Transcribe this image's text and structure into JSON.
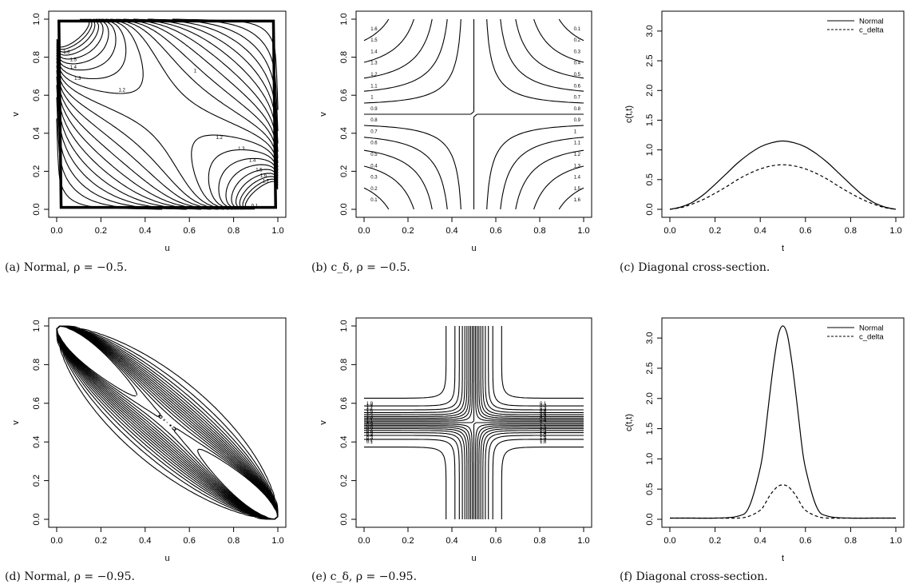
{
  "panels": [
    {
      "caption": "(a) Normal, ρ = −0.5."
    },
    {
      "caption": "(b) c_δ, ρ = −0.5."
    },
    {
      "caption": "(c) Diagonal cross-section."
    },
    {
      "caption": "(d) Normal, ρ = −0.95."
    },
    {
      "caption": "(e) c_δ, ρ = −0.95."
    },
    {
      "caption": "(f) Diagonal cross-section."
    }
  ],
  "colors": {
    "line": "#000000",
    "background": "#ffffff"
  },
  "chart_data": [
    {
      "type": "contour",
      "panel": "a",
      "xlabel": "u",
      "ylabel": "v",
      "xlim": [
        0,
        1
      ],
      "ylim": [
        0,
        1
      ],
      "xticks": [
        "0.0",
        "0.2",
        "0.4",
        "0.6",
        "0.8",
        "1.0"
      ],
      "yticks": [
        "0.0",
        "0.2",
        "0.4",
        "0.6",
        "0.8",
        "1.0"
      ],
      "rho": -0.5,
      "levels": [
        0.1,
        0.2,
        0.3,
        0.4,
        0.5,
        0.6,
        0.7,
        0.8,
        0.9,
        1,
        1.1,
        1.2,
        1.3,
        1.4,
        1.5,
        1.6,
        1.7,
        1.8,
        1.9,
        2
      ],
      "contour_labels": [
        "1.6",
        "1.5",
        "1.4",
        "1.3",
        "1.2",
        "1",
        "1.2",
        "1.3",
        "1.4",
        "1.5",
        "1.6",
        "1.7",
        "0.1"
      ]
    },
    {
      "type": "contour",
      "panel": "b",
      "xlabel": "u",
      "ylabel": "v",
      "xlim": [
        0,
        1
      ],
      "ylim": [
        0,
        1
      ],
      "xticks": [
        "0.0",
        "0.2",
        "0.4",
        "0.6",
        "0.8",
        "1.0"
      ],
      "yticks": [
        "0.0",
        "0.2",
        "0.4",
        "0.6",
        "0.8",
        "1.0"
      ],
      "rho": -0.5,
      "levels": [
        0.1,
        0.2,
        0.3,
        0.4,
        0.5,
        0.6,
        0.7,
        0.8,
        0.9,
        1,
        1.1,
        1.2,
        1.3,
        1.4,
        1.5,
        1.6
      ],
      "right_labels": [
        "0.1",
        "0.2",
        "0.3",
        "0.4",
        "0.5",
        "0.6",
        "0.7",
        "0.8",
        "0.9",
        "1",
        "1.1",
        "1.2",
        "1.3",
        "1.4",
        "1.5",
        "1.6"
      ],
      "left_labels": [
        "1.6",
        "1.5",
        "1.4",
        "1.3",
        "1.2",
        "1.1",
        "1",
        "0.9",
        "0.8",
        "0.7",
        "0.6",
        "0.5",
        "0.4",
        "0.3",
        "0.2",
        "0.1"
      ]
    },
    {
      "type": "line",
      "panel": "c",
      "xlabel": "t",
      "ylabel": "c(t,t)",
      "xlim": [
        0,
        1
      ],
      "ylim": [
        0,
        3.2
      ],
      "xticks": [
        "0.0",
        "0.2",
        "0.4",
        "0.6",
        "0.8",
        "1.0"
      ],
      "yticks": [
        "0.0",
        "0.5",
        "1.0",
        "1.5",
        "2.0",
        "2.5",
        "3.0"
      ],
      "legend": "top-right",
      "x": [
        0,
        0.05,
        0.1,
        0.15,
        0.2,
        0.25,
        0.3,
        0.35,
        0.4,
        0.45,
        0.5,
        0.55,
        0.6,
        0.65,
        0.7,
        0.75,
        0.8,
        0.85,
        0.9,
        0.95,
        1
      ],
      "series": [
        {
          "name": "Normal",
          "style": "solid",
          "values": [
            0,
            0.04,
            0.12,
            0.25,
            0.42,
            0.6,
            0.78,
            0.93,
            1.05,
            1.12,
            1.15,
            1.12,
            1.05,
            0.93,
            0.78,
            0.6,
            0.42,
            0.25,
            0.12,
            0.04,
            0
          ]
        },
        {
          "name": "c_delta",
          "style": "dashed",
          "values": [
            0,
            0.03,
            0.09,
            0.17,
            0.27,
            0.38,
            0.5,
            0.6,
            0.68,
            0.73,
            0.75,
            0.73,
            0.68,
            0.6,
            0.5,
            0.38,
            0.27,
            0.17,
            0.09,
            0.03,
            0
          ]
        }
      ]
    },
    {
      "type": "contour",
      "panel": "d",
      "xlabel": "u",
      "ylabel": "v",
      "xlim": [
        0,
        1
      ],
      "ylim": [
        0,
        1
      ],
      "xticks": [
        "0.0",
        "0.2",
        "0.4",
        "0.6",
        "0.8",
        "1.0"
      ],
      "yticks": [
        "0.0",
        "0.2",
        "0.4",
        "0.6",
        "0.8",
        "1.0"
      ],
      "rho": -0.95
    },
    {
      "type": "contour",
      "panel": "e",
      "xlabel": "u",
      "ylabel": "v",
      "xlim": [
        0,
        1
      ],
      "ylim": [
        0,
        1
      ],
      "xticks": [
        "0.0",
        "0.2",
        "0.4",
        "0.6",
        "0.8",
        "1.0"
      ],
      "yticks": [
        "0.0",
        "0.2",
        "0.4",
        "0.6",
        "0.8",
        "1.0"
      ],
      "rho": -0.95,
      "levels": [
        0.1,
        0.2,
        0.3,
        0.4,
        0.5,
        0.6,
        0.7,
        0.8,
        0.9,
        1,
        1.1,
        1.2,
        1.3,
        1.4,
        1.5,
        1.6,
        1.7,
        1.8,
        1.9
      ],
      "left_labels": [
        "1.9",
        "1.8",
        "1.7",
        "1.6",
        "1.5",
        "1.4",
        "1.3",
        "1.2",
        "1.1",
        "1",
        "0.9",
        "0.8",
        "0.7",
        "0.6",
        "0.5",
        "0.4",
        "0.3",
        "0.2",
        "0.1"
      ],
      "right_labels": [
        "0.1",
        "0.2",
        "0.3",
        "0.4",
        "0.5",
        "0.6",
        "0.7",
        "0.8",
        "0.9",
        "1",
        "1.1",
        "1.2",
        "1.3",
        "1.4",
        "1.5",
        "1.6",
        "1.7",
        "1.8"
      ]
    },
    {
      "type": "line",
      "panel": "f",
      "xlabel": "t",
      "ylabel": "c(t,t)",
      "xlim": [
        0,
        1
      ],
      "ylim": [
        0,
        3.2
      ],
      "xticks": [
        "0.0",
        "0.2",
        "0.4",
        "0.6",
        "0.8",
        "1.0"
      ],
      "yticks": [
        "0.0",
        "0.5",
        "1.0",
        "1.5",
        "2.0",
        "2.5",
        "3.0"
      ],
      "legend": "top-right",
      "x": [
        0,
        0.1,
        0.2,
        0.3,
        0.35,
        0.4,
        0.42,
        0.44,
        0.46,
        0.48,
        0.5,
        0.52,
        0.54,
        0.56,
        0.58,
        0.6,
        0.65,
        0.7,
        0.8,
        0.9,
        1
      ],
      "series": [
        {
          "name": "Normal",
          "style": "solid",
          "values": [
            0.02,
            0.02,
            0.02,
            0.05,
            0.2,
            0.85,
            1.35,
            2.0,
            2.6,
            3.05,
            3.2,
            3.05,
            2.6,
            2.0,
            1.35,
            0.85,
            0.2,
            0.05,
            0.02,
            0.02,
            0.02
          ]
        },
        {
          "name": "c_delta",
          "style": "dashed",
          "values": [
            0.02,
            0.02,
            0.02,
            0.02,
            0.05,
            0.15,
            0.25,
            0.38,
            0.48,
            0.55,
            0.57,
            0.55,
            0.48,
            0.38,
            0.25,
            0.15,
            0.05,
            0.02,
            0.02,
            0.02,
            0.02
          ]
        }
      ]
    }
  ]
}
